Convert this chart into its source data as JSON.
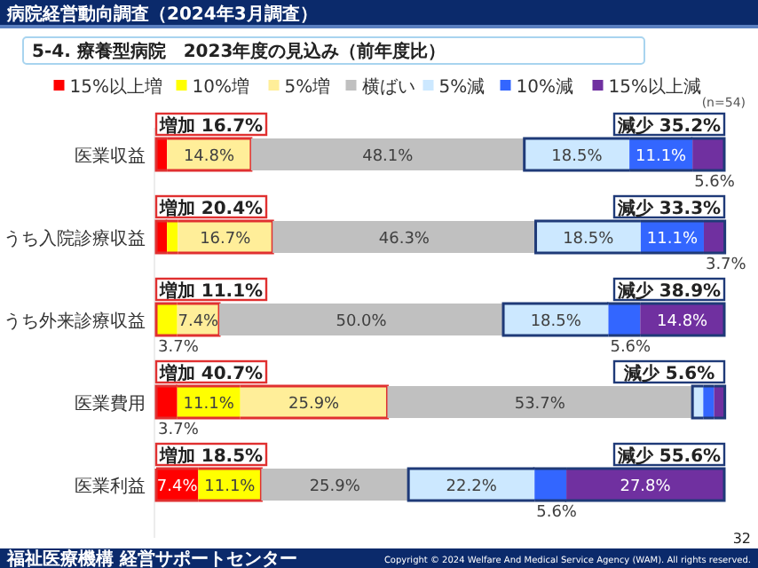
{
  "chart_data": {
    "type": "bar",
    "orientation": "horizontal",
    "stacked": true,
    "title": "5-4. 療養型病院　2023年度の見込み（前年度比）",
    "categories": [
      "医業収益",
      "うち入院診療収益",
      "うち外来診療収益",
      "医業費用",
      "医業利益"
    ],
    "series": [
      {
        "name": "15%以上増",
        "color": "#ff0000",
        "values": [
          1.9,
          1.9,
          0,
          3.7,
          7.4
        ],
        "value_labels": [
          null,
          null,
          null,
          "3.7%",
          "7.4%"
        ]
      },
      {
        "name": "10%増",
        "color": "#ffff00",
        "values": [
          0,
          1.9,
          3.7,
          11.1,
          11.1
        ],
        "value_labels": [
          null,
          null,
          "3.7%",
          "11.1%",
          "11.1%"
        ]
      },
      {
        "name": "5%増",
        "color": "#ffee99",
        "values": [
          14.8,
          16.7,
          7.4,
          25.9,
          0
        ],
        "value_labels": [
          "14.8%",
          "16.7%",
          "7.4%",
          "25.9%",
          null
        ]
      },
      {
        "name": "横ばい",
        "color": "#c0c0c0",
        "values": [
          48.1,
          46.3,
          50.0,
          53.7,
          25.9
        ],
        "value_labels": [
          "48.1%",
          "46.3%",
          "50.0%",
          "53.7%",
          "25.9%"
        ]
      },
      {
        "name": "5%減",
        "color": "#cce8ff",
        "values": [
          18.5,
          18.5,
          18.5,
          1.9,
          22.2
        ],
        "value_labels": [
          "18.5%",
          "18.5%",
          "18.5%",
          null,
          "22.2%"
        ]
      },
      {
        "name": "10%減",
        "color": "#3366ff",
        "values": [
          11.1,
          11.1,
          5.6,
          1.9,
          5.6
        ],
        "value_labels": [
          "11.1%",
          "11.1%",
          "5.6%",
          null,
          "5.6%"
        ]
      },
      {
        "name": "15%以上減",
        "color": "#7030a0",
        "values": [
          5.6,
          3.7,
          14.8,
          1.9,
          27.8
        ],
        "value_labels": [
          "5.6%",
          "3.7%",
          "14.8%",
          null,
          "27.8%"
        ]
      }
    ],
    "legend": "top",
    "annotations": [
      "病院経営動向調査（2024年3月調査）",
      "(n=54)",
      "福祉医療機構 経営サポートセンター",
      "Copyright © 2024 Welfare And Medical Service Agency (WAM). All rights reserved.",
      "32",
      "増加 16.7%",
      "減少 35.2%",
      "増加 20.4%",
      "減少 33.3%",
      "増加 11.1%",
      "減少 38.9%",
      "増加 40.7%",
      "減少 5.6%",
      "増加 18.5%",
      "減少 55.6%"
    ]
  }
}
